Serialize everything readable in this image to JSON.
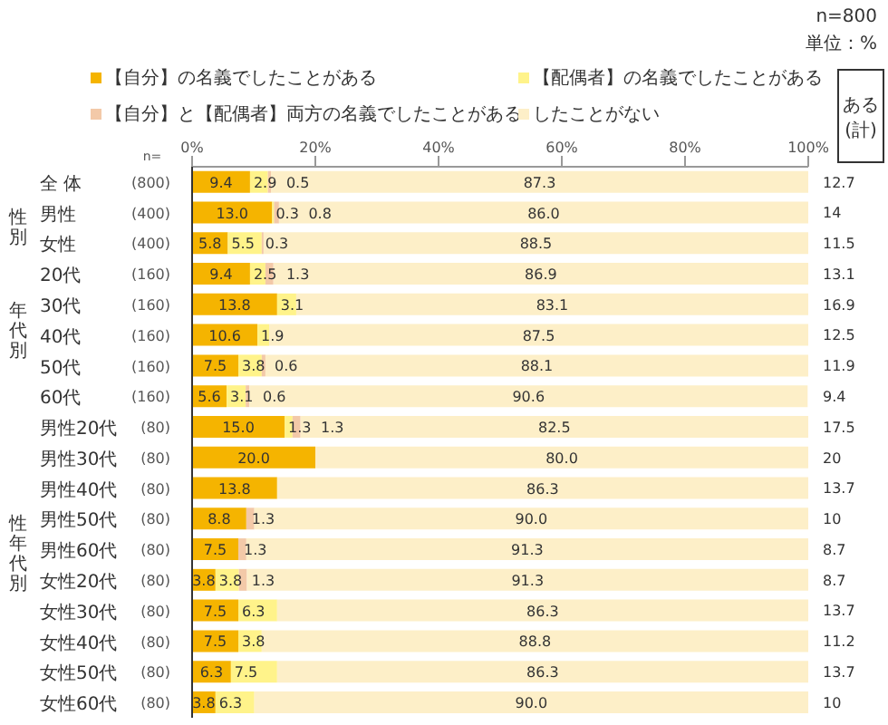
{
  "chart_data": {
    "type": "bar",
    "orientation": "horizontal",
    "stacked": true,
    "legend": "top",
    "categories": [
      "全 体",
      "男性",
      "女性",
      "20代",
      "30代",
      "40代",
      "50代",
      "60代",
      "男性20代",
      "男性30代",
      "男性40代",
      "男性50代",
      "男性60代",
      "女性20代",
      "女性30代",
      "女性40代",
      "女性50代",
      "女性60代"
    ],
    "series": [
      {
        "name": "【自分】の名義でしたことがある",
        "color": "#f5b400",
        "values": [
          9.4,
          13.0,
          5.8,
          9.4,
          13.8,
          10.6,
          7.5,
          5.6,
          15.0,
          20.0,
          13.8,
          8.8,
          7.5,
          3.8,
          7.5,
          7.5,
          6.3,
          3.8
        ],
        "value_labels": [
          "9.4",
          "13.0",
          "5.8",
          "9.4",
          "13.8",
          "10.6",
          "7.5",
          "5.6",
          "15.0",
          "20.0",
          "13.8",
          "8.8",
          "7.5",
          "3.8",
          "7.5",
          "7.5",
          "6.3",
          "3.8"
        ]
      },
      {
        "name": "【配偶者】の名義でしたことがある",
        "color": "#fff38a",
        "values": [
          2.9,
          0.3,
          5.5,
          2.5,
          3.1,
          1.9,
          3.8,
          3.1,
          1.3,
          null,
          null,
          null,
          null,
          3.8,
          6.3,
          3.8,
          7.5,
          6.3
        ],
        "value_labels": [
          "2.9",
          "0.3",
          "5.5",
          "2.5",
          "3.1",
          "1.9",
          "3.8",
          "3.1",
          "1.3",
          null,
          null,
          null,
          null,
          "3.8",
          "6.3",
          "3.8",
          "7.5",
          "6.3"
        ]
      },
      {
        "name": "【自分】と【配偶者】両方の名義でしたことがある",
        "color": "#f3c9a8",
        "values": [
          0.5,
          0.8,
          0.3,
          1.3,
          null,
          null,
          0.6,
          0.6,
          1.3,
          null,
          null,
          1.3,
          1.3,
          1.3,
          null,
          null,
          null,
          null
        ],
        "value_labels": [
          "0.5",
          "0.8",
          "0.3",
          "1.3",
          null,
          null,
          "0.6",
          "0.6",
          "1.3",
          null,
          null,
          "1.3",
          "1.3",
          "1.3",
          null,
          null,
          null,
          null
        ]
      },
      {
        "name": "したことがない",
        "color": "#fdefc8",
        "values": [
          87.3,
          86.0,
          88.5,
          86.9,
          83.1,
          87.5,
          88.1,
          90.6,
          82.5,
          80.0,
          86.3,
          90.0,
          91.3,
          91.3,
          86.3,
          88.8,
          86.3,
          90.0
        ],
        "value_labels": [
          "87.3",
          "86.0",
          "88.5",
          "86.9",
          "83.1",
          "87.5",
          "88.1",
          "90.6",
          "82.5",
          "80.0",
          "86.3",
          "90.0",
          "91.3",
          "91.3",
          "86.3",
          "88.8",
          "86.3",
          "90.0"
        ]
      }
    ],
    "xlim": [
      0,
      100
    ],
    "xticks": [
      {
        "value": 0,
        "label": "0%"
      },
      {
        "value": 20,
        "label": "20%"
      },
      {
        "value": 40,
        "label": "40%"
      },
      {
        "value": 60,
        "label": "60%"
      },
      {
        "value": 80,
        "label": "80%"
      },
      {
        "value": 100,
        "label": "100%"
      }
    ],
    "annotations": [
      "n=800",
      "単位：%",
      "n=",
      "性別",
      "年代別",
      "性年代別",
      "ある(計)",
      "(800)",
      "(400)",
      "(400)",
      "(160)",
      "(160)",
      "(160)",
      "(160)",
      "(160)",
      "(80)",
      "(80)",
      "(80)",
      "(80)",
      "(80)",
      "(80)",
      "(80)",
      "(80)",
      "(80)",
      "(80)",
      "12.7",
      "14",
      "11.5",
      "13.1",
      "16.9",
      "12.5",
      "11.9",
      "9.4",
      "17.5",
      "20",
      "13.7",
      "10",
      "8.7",
      "8.7",
      "13.7",
      "11.2",
      "13.7",
      "10"
    ]
  }
}
